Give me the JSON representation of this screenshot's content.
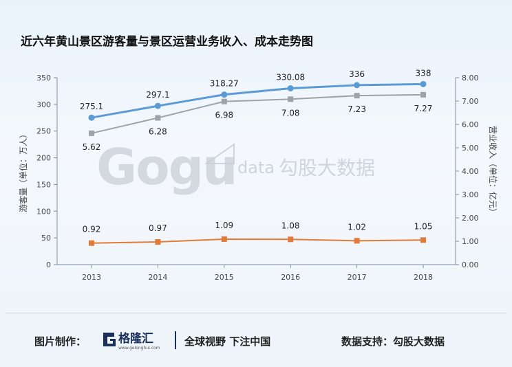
{
  "chart_data": {
    "type": "line",
    "title": "近六年黄山景区游客量与景区运营业务收入、成本走势图",
    "categories": [
      "2013",
      "2014",
      "2015",
      "2016",
      "2017",
      "2018"
    ],
    "left_axis": {
      "label": "游客量（单位：万人）",
      "ticks": [
        "0",
        "50",
        "100",
        "150",
        "200",
        "250",
        "300",
        "350"
      ],
      "ylim": [
        0,
        350
      ]
    },
    "right_axis": {
      "label": "营业收入（单位：亿元）",
      "ticks": [
        "0.00",
        "1.00",
        "2.00",
        "3.00",
        "4.00",
        "5.00",
        "6.00",
        "7.00",
        "8.00"
      ],
      "ylim": [
        0,
        8
      ]
    },
    "series": [
      {
        "axis": "left",
        "color": "#5b9bd5",
        "marker": "circle",
        "values": [
          275.1,
          297.1,
          318.27,
          330.08,
          336,
          338
        ],
        "labels": [
          "275.1",
          "297.1",
          "318.27",
          "330.08",
          "336",
          "338"
        ]
      },
      {
        "axis": "right",
        "color": "#9ea3a8",
        "marker": "square",
        "values": [
          5.62,
          6.28,
          6.98,
          7.08,
          7.23,
          7.27
        ],
        "labels": [
          "5.62",
          "6.28",
          "6.98",
          "7.08",
          "7.23",
          "7.27"
        ]
      },
      {
        "axis": "right",
        "color": "#e07b39",
        "marker": "square",
        "values": [
          0.92,
          0.97,
          1.09,
          1.08,
          1.02,
          1.05
        ],
        "labels": [
          "0.92",
          "0.97",
          "1.09",
          "1.08",
          "1.02",
          "1.05"
        ]
      }
    ],
    "grid": false
  },
  "watermark": {
    "logo_text": "Gogu",
    "suffix": "data",
    "cn": "勾股大数据"
  },
  "footer": {
    "made_by_label": "图片制作：",
    "brand_name": "格隆汇",
    "brand_url": "www.gelonghui.com",
    "slogan": "全球视野 下注中国",
    "data_support": "数据支持：勾股大数据"
  }
}
